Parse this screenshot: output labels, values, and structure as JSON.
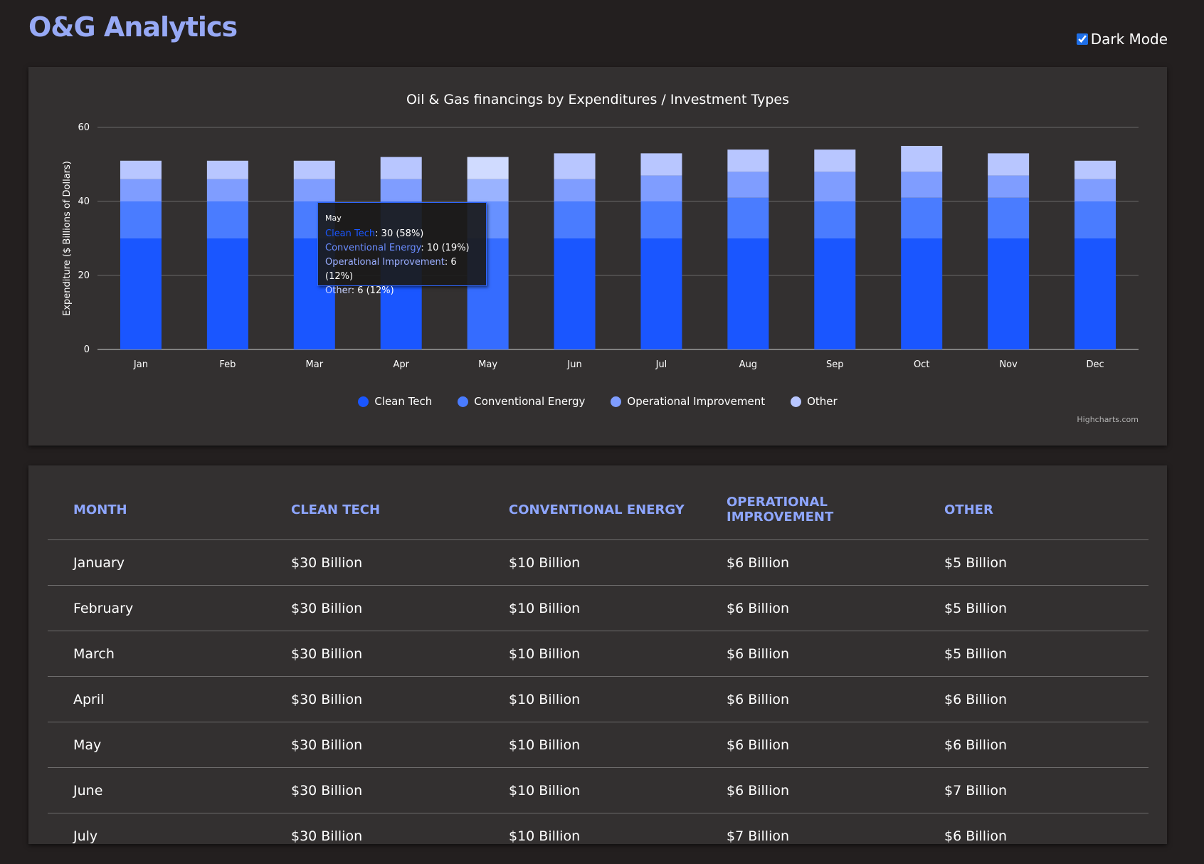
{
  "header": {
    "app_title": "O&G Analytics",
    "dark_mode_label": "Dark Mode",
    "dark_mode_checked": true
  },
  "colors": {
    "background": "#231f1f",
    "card": "#333030",
    "clean_tech": "#1a56ff",
    "conventional_energy": "#4a7cff",
    "operational_improvement": "#7f9dff",
    "other": "#b8c6ff",
    "header_text": "#8ea6ff"
  },
  "chart_data": {
    "type": "bar",
    "stacked": true,
    "title": "Oil & Gas financings by Expenditures / Investment Types",
    "ylabel": "Expenditure ($ Billions of Dollars)",
    "xlabel": "",
    "ylim": [
      0,
      60
    ],
    "yticks": [
      "0",
      "20",
      "40",
      "60"
    ],
    "grid": true,
    "legend_position": "bottom-center",
    "categories": [
      "Jan",
      "Feb",
      "Mar",
      "Apr",
      "May",
      "Jun",
      "Jul",
      "Aug",
      "Sep",
      "Oct",
      "Nov",
      "Dec"
    ],
    "series": [
      {
        "name": "Clean Tech",
        "color": "#1a56ff",
        "values": [
          30,
          30,
          30,
          30,
          30,
          30,
          30,
          30,
          30,
          30,
          30,
          30
        ]
      },
      {
        "name": "Conventional Energy",
        "color": "#4a7cff",
        "values": [
          10,
          10,
          10,
          10,
          10,
          10,
          10,
          11,
          10,
          11,
          11,
          10
        ]
      },
      {
        "name": "Operational Improvement",
        "color": "#7f9dff",
        "values": [
          6,
          6,
          6,
          6,
          6,
          6,
          7,
          7,
          8,
          7,
          6,
          6
        ]
      },
      {
        "name": "Other",
        "color": "#b8c6ff",
        "values": [
          5,
          5,
          5,
          6,
          6,
          7,
          6,
          6,
          6,
          7,
          6,
          5
        ]
      }
    ],
    "hovered_index": 4,
    "credits": "Highcharts.com"
  },
  "tooltip": {
    "header": "May",
    "rows": [
      {
        "name": "Clean Tech",
        "value": ": 30 (58%)"
      },
      {
        "name": "Conventional Energy",
        "value": ": 10 (19%)"
      },
      {
        "name": "Operational Improvement",
        "value": ": 6 (12%)"
      },
      {
        "name": "Other",
        "value": ": 6 (12%)"
      }
    ]
  },
  "table": {
    "columns": [
      "MONTH",
      "CLEAN TECH",
      "CONVENTIONAL ENERGY",
      "OPERATIONAL IMPROVEMENT",
      "OTHER"
    ],
    "rows": [
      [
        "January",
        "$30 Billion",
        "$10 Billion",
        "$6 Billion",
        "$5 Billion"
      ],
      [
        "February",
        "$30 Billion",
        "$10 Billion",
        "$6 Billion",
        "$5 Billion"
      ],
      [
        "March",
        "$30 Billion",
        "$10 Billion",
        "$6 Billion",
        "$5 Billion"
      ],
      [
        "April",
        "$30 Billion",
        "$10 Billion",
        "$6 Billion",
        "$6 Billion"
      ],
      [
        "May",
        "$30 Billion",
        "$10 Billion",
        "$6 Billion",
        "$6 Billion"
      ],
      [
        "June",
        "$30 Billion",
        "$10 Billion",
        "$6 Billion",
        "$7 Billion"
      ],
      [
        "July",
        "$30 Billion",
        "$10 Billion",
        "$7 Billion",
        "$6 Billion"
      ]
    ]
  }
}
